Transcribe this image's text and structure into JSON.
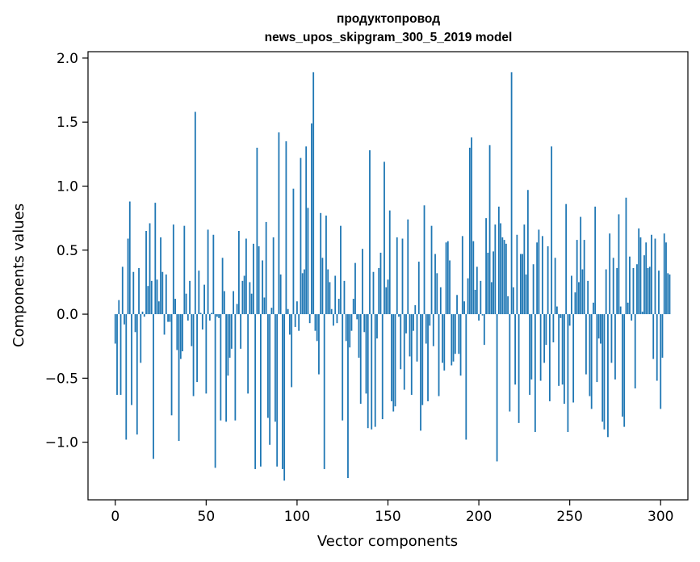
{
  "chart_data": {
    "type": "bar",
    "title_line1": "продуктопровод",
    "title_line2": "news_upos_skipgram_300_5_2019 model",
    "xlabel": "Vector components",
    "ylabel": "Components values",
    "xlim": [
      -15,
      315
    ],
    "ylim": [
      -1.45,
      2.05
    ],
    "xticks": [
      0,
      50,
      100,
      150,
      200,
      250,
      300
    ],
    "xtick_labels": [
      "0",
      "50",
      "100",
      "150",
      "200",
      "250",
      "300"
    ],
    "yticks": [
      -1.0,
      -0.5,
      0.0,
      0.5,
      1.0,
      1.5,
      2.0
    ],
    "ytick_labels": [
      "−1.0",
      "−0.5",
      "0.0",
      "0.5",
      "1.0",
      "1.5",
      "2.0"
    ],
    "bar_color": "#1f77b4",
    "x_start": 0,
    "values": [
      -0.23,
      -0.63,
      0.11,
      -0.63,
      0.37,
      -0.08,
      -0.98,
      0.59,
      0.88,
      -0.71,
      0.33,
      -0.14,
      -0.94,
      0.36,
      -0.38,
      0.02,
      -0.02,
      0.65,
      0.22,
      0.71,
      0.26,
      -1.13,
      0.87,
      0.27,
      0.1,
      0.6,
      0.33,
      -0.16,
      0.31,
      -0.06,
      -0.06,
      -0.79,
      0.7,
      0.12,
      -0.28,
      -0.99,
      -0.35,
      -0.29,
      0.69,
      0.16,
      -0.05,
      0.26,
      -0.25,
      -0.64,
      1.58,
      -0.53,
      0.34,
      0.01,
      -0.12,
      0.23,
      -0.62,
      0.66,
      -0.05,
      0.01,
      0.62,
      -1.2,
      -0.02,
      -0.03,
      -0.83,
      0.44,
      0.18,
      -0.84,
      -0.48,
      -0.34,
      -0.27,
      0.18,
      -0.83,
      0.08,
      0.65,
      -0.27,
      0.26,
      0.3,
      0.59,
      -0.62,
      0.25,
      0.16,
      0.55,
      -1.21,
      1.3,
      0.53,
      -1.19,
      0.42,
      0.13,
      0.72,
      -0.81,
      -1.02,
      0.05,
      0.6,
      -0.84,
      -1.19,
      1.42,
      0.31,
      -1.21,
      -1.3,
      1.35,
      0.04,
      -0.16,
      -0.57,
      0.98,
      -0.1,
      0.1,
      -0.13,
      1.22,
      0.32,
      0.35,
      1.31,
      0.83,
      -0.07,
      1.49,
      1.89,
      -0.13,
      -0.21,
      -0.47,
      0.79,
      0.44,
      -1.21,
      0.77,
      0.35,
      0.25,
      0.04,
      -0.09,
      0.3,
      -0.07,
      0.12,
      0.69,
      -0.83,
      0.26,
      -0.21,
      -1.28,
      -0.26,
      -0.13,
      0.12,
      0.4,
      -0.04,
      -0.34,
      -0.7,
      0.51,
      -0.14,
      -0.62,
      -0.89,
      1.28,
      -0.9,
      0.33,
      -0.88,
      -0.19,
      0.36,
      0.48,
      -0.82,
      1.19,
      0.21,
      0.27,
      0.81,
      -0.68,
      -0.76,
      -0.72,
      0.6,
      -0.02,
      -0.43,
      0.59,
      -0.59,
      -0.15,
      0.74,
      -0.33,
      -0.63,
      -0.13,
      0.07,
      -0.37,
      0.41,
      -0.91,
      -0.71,
      0.85,
      -0.23,
      -0.68,
      -0.09,
      0.69,
      -0.25,
      0.47,
      0.32,
      -0.64,
      0.21,
      -0.38,
      -0.44,
      0.56,
      0.57,
      0.42,
      -0.4,
      -0.37,
      -0.31,
      0.15,
      -0.31,
      -0.48,
      0.61,
      0.1,
      -0.98,
      0.28,
      1.3,
      1.38,
      0.57,
      0.19,
      0.37,
      -0.05,
      0.26,
      -0.01,
      -0.24,
      0.75,
      0.48,
      1.32,
      0.25,
      0.49,
      0.7,
      -1.15,
      0.84,
      0.71,
      0.6,
      0.58,
      0.55,
      0.14,
      -0.76,
      1.89,
      0.21,
      -0.55,
      0.62,
      -0.85,
      0.47,
      0.47,
      0.7,
      0.31,
      0.97,
      -0.63,
      -0.51,
      0.39,
      -0.92,
      0.56,
      0.66,
      -0.52,
      0.61,
      -0.38,
      -0.24,
      0.53,
      -0.68,
      1.31,
      -0.22,
      0.44,
      0.06,
      -0.56,
      -0.03,
      -0.55,
      -0.7,
      0.86,
      -0.92,
      -0.09,
      0.3,
      -0.69,
      0.17,
      0.58,
      0.25,
      0.76,
      0.35,
      0.58,
      -0.47,
      0.26,
      -0.64,
      -0.74,
      0.09,
      0.84,
      -0.53,
      -0.19,
      -0.23,
      -0.84,
      -0.9,
      0.35,
      -0.96,
      0.63,
      -0.38,
      0.44,
      -0.51,
      0.36,
      0.78,
      0.06,
      -0.8,
      -0.88,
      0.91,
      0.09,
      0.45,
      -0.05,
      0.36,
      -0.58,
      0.39,
      0.67,
      0.6,
      0.02,
      0.46,
      0.56,
      0.36,
      0.37,
      0.62,
      -0.35,
      0.59,
      -0.52,
      0.34,
      -0.74,
      -0.34,
      0.63,
      0.56,
      0.32,
      0.31
    ]
  }
}
